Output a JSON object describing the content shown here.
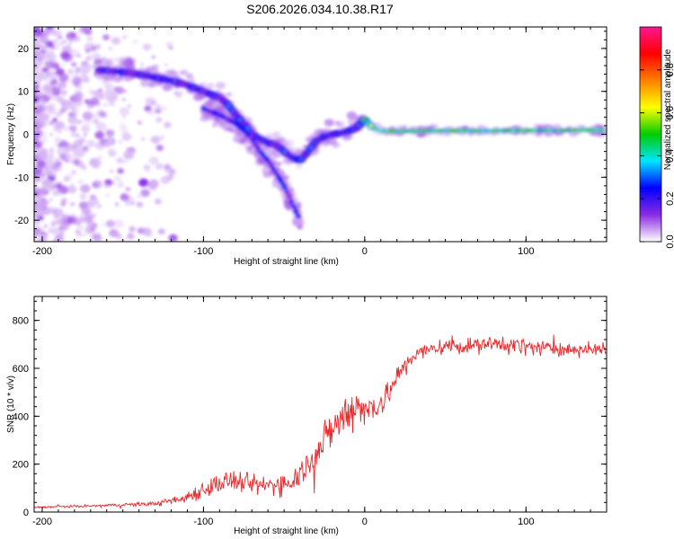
{
  "title": "S206.2026.034.10.38.R17",
  "chart_data": [
    {
      "type": "heatmap",
      "name": "spectrogram",
      "xlabel": "Height of straight line (km)",
      "ylabel": "Frequency (Hz)",
      "xlim": [
        -205,
        150
      ],
      "ylim": [
        -25,
        25
      ],
      "xticks": [
        -200,
        -100,
        0,
        100
      ],
      "yticks": [
        20,
        10,
        0,
        -10,
        -20
      ],
      "ridges": [
        {
          "name": "main-ridge",
          "x": [
            -165,
            -150,
            -140,
            -130,
            -120,
            -110,
            -100,
            -90,
            -85,
            -80,
            -75,
            -70,
            -65,
            -60,
            -55,
            -50,
            -45,
            -40,
            -35,
            -30,
            -25,
            -20,
            -15,
            -10,
            -5,
            0,
            5,
            10,
            20,
            40,
            60,
            80,
            100,
            120,
            150
          ],
          "y": [
            15,
            14.5,
            14,
            13.2,
            12.5,
            11.5,
            10,
            8.5,
            7,
            4.5,
            2.5,
            0,
            -1,
            -2,
            -2.5,
            -4,
            -5.5,
            -6,
            -4,
            -1.5,
            -0.5,
            0,
            0.3,
            0.8,
            1.5,
            3.5,
            1.5,
            0.8,
            0.7,
            0.8,
            0.8,
            0.8,
            0.9,
            0.9,
            1.0
          ]
        },
        {
          "name": "lower-branch",
          "x": [
            -100,
            -90,
            -80,
            -75,
            -70,
            -65,
            -60,
            -55,
            -50,
            -45,
            -40
          ],
          "y": [
            6,
            4.5,
            2.5,
            1,
            -1,
            -4,
            -6,
            -9,
            -12,
            -16,
            -20
          ]
        }
      ],
      "colorbar": {
        "label": "Normalized spectral amplitude",
        "range": [
          0,
          1
        ],
        "ticks": [
          0.0,
          0.2,
          0.4,
          0.6,
          0.8
        ],
        "tick_labels": [
          "0.0",
          "0.2",
          "0.4",
          "0.6",
          "0.8"
        ],
        "colormap": [
          "#ffffff",
          "#8a2be2",
          "#0000ff",
          "#00e5ff",
          "#00cc00",
          "#ffff00",
          "#ff8000",
          "#ff0000",
          "#ff1493"
        ]
      }
    },
    {
      "type": "line",
      "name": "snr",
      "xlabel": "Height of straight line (km)",
      "ylabel": "SNR (10 * v/v)",
      "xlim": [
        -205,
        150
      ],
      "ylim": [
        0,
        900
      ],
      "xticks": [
        -200,
        -100,
        0,
        100
      ],
      "yticks": [
        0,
        200,
        400,
        600,
        800
      ],
      "color": "#e8282b",
      "x": [
        -205,
        -190,
        -170,
        -150,
        -130,
        -115,
        -105,
        -95,
        -85,
        -75,
        -65,
        -55,
        -45,
        -38,
        -30,
        -25,
        -20,
        -15,
        -10,
        -5,
        0,
        5,
        10,
        15,
        20,
        25,
        30,
        40,
        50,
        60,
        70,
        80,
        90,
        100,
        110,
        120,
        130,
        140,
        150
      ],
      "y": [
        20,
        22,
        25,
        30,
        35,
        50,
        80,
        110,
        130,
        120,
        110,
        115,
        130,
        180,
        250,
        300,
        350,
        380,
        420,
        460,
        420,
        440,
        460,
        500,
        560,
        610,
        650,
        680,
        690,
        695,
        695,
        700,
        700,
        690,
        685,
        680,
        680,
        680,
        675
      ],
      "noise": [
        4,
        5,
        6,
        8,
        10,
        20,
        35,
        45,
        50,
        45,
        45,
        50,
        55,
        60,
        70,
        80,
        90,
        95,
        100,
        90,
        70,
        70,
        70,
        60,
        50,
        45,
        40,
        35,
        35,
        35,
        35,
        35,
        40,
        40,
        35,
        30,
        30,
        30,
        30
      ]
    }
  ]
}
